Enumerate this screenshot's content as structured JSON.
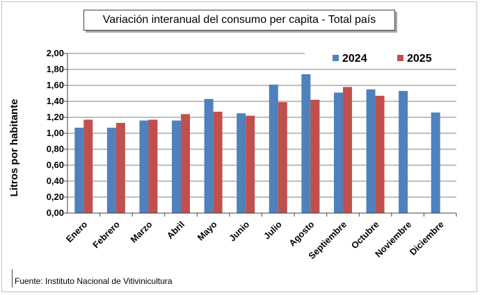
{
  "chart_data": {
    "type": "bar",
    "title": "Variación interanual del consumo per capita - Total país",
    "ylabel": "Litros por  habitante",
    "xlabel": "",
    "ylim": [
      0,
      2.0
    ],
    "ytick_step": 0.2,
    "yticks": [
      "0,00",
      "0,20",
      "0,40",
      "0,60",
      "0,80",
      "1,00",
      "1,20",
      "1,40",
      "1,60",
      "1,80",
      "2,00"
    ],
    "categories": [
      "Enero",
      "Febrero",
      "Marzo",
      "Abril",
      "Mayo",
      "Junio",
      "Julio",
      "Agosto",
      "Septiembre",
      "Octubre",
      "Noviembre",
      "Diciembre"
    ],
    "series": [
      {
        "name": "2024",
        "color": "#4f81bd",
        "values": [
          1.07,
          1.07,
          1.16,
          1.16,
          1.43,
          1.25,
          1.61,
          1.74,
          1.51,
          1.55,
          1.53,
          1.26
        ]
      },
      {
        "name": "2025",
        "color": "#c0504d",
        "values": [
          1.17,
          1.13,
          1.17,
          1.24,
          1.27,
          1.22,
          1.39,
          1.42,
          1.58,
          1.47,
          null,
          null
        ]
      }
    ],
    "grid": true,
    "legend": "top-right"
  },
  "source": "Fuente: Instituto  Nacional  de Vitivinicultura"
}
